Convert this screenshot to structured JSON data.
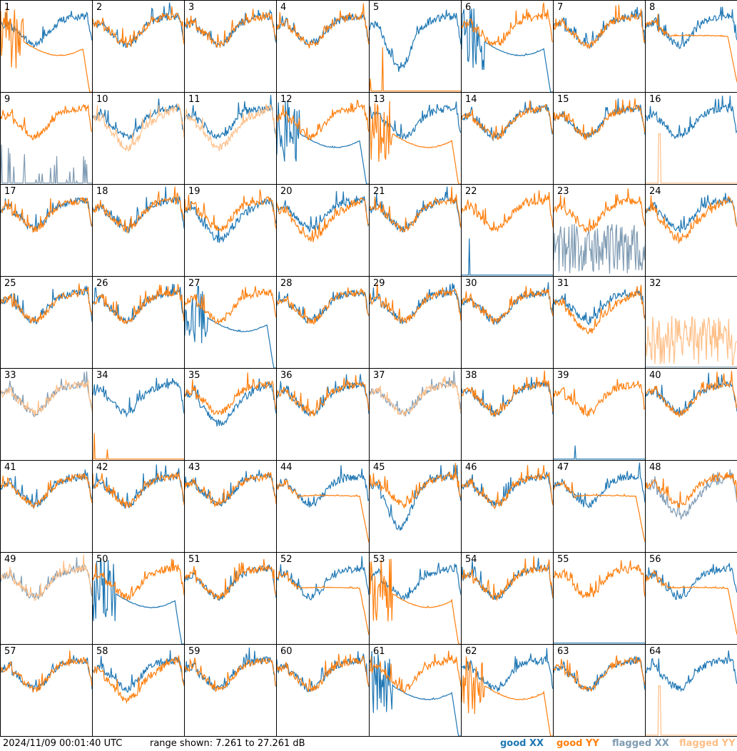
{
  "colors": {
    "good_xx": "#1f77b4",
    "good_yy": "#ff7f0e",
    "flagged_xx": "#7f9bb3",
    "flagged_yy": "#ffbf87"
  },
  "footer": {
    "timestamp": "2024/11/09 00:01:40 UTC",
    "range": "range shown: 7.261 to 27.261 dB"
  },
  "legend": [
    {
      "label": "good XX",
      "color": "#1f77b4"
    },
    {
      "label": "good YY",
      "color": "#ff7f0e"
    },
    {
      "label": "flagged XX",
      "color": "#7f9bb3"
    },
    {
      "label": "flagged YY",
      "color": "#ffbf87"
    }
  ],
  "chart_data": {
    "type": "line",
    "grid": "8x8 small multiples",
    "ylim_db": [
      7.261,
      27.261
    ],
    "y_range_text": "range shown: 7.261 to 27.261 dB",
    "series_names": [
      "good XX",
      "good YY",
      "flagged XX",
      "flagged YY"
    ],
    "panels": [
      {
        "id": "1",
        "xx": "normal",
        "yy": "drop"
      },
      {
        "id": "2",
        "xx": "normal",
        "yy": "normal"
      },
      {
        "id": "3",
        "xx": "normal",
        "yy": "normal"
      },
      {
        "id": "4",
        "xx": "normal",
        "yy": "normal"
      },
      {
        "id": "5",
        "xx": "dip",
        "yy": "flat_spikes"
      },
      {
        "id": "6",
        "xx": "drop",
        "yy": "normal"
      },
      {
        "id": "7",
        "xx": "normal",
        "yy": "normal"
      },
      {
        "id": "8",
        "xx": "normal",
        "yy": "smooth"
      },
      {
        "id": "9",
        "xx": "flagged_spikes",
        "yy": "normal"
      },
      {
        "id": "10",
        "xx": "normal",
        "yy": "flagged_low"
      },
      {
        "id": "11",
        "xx": "normal",
        "yy": "flagged_low"
      },
      {
        "id": "12",
        "xx": "drop",
        "yy": "normal"
      },
      {
        "id": "13",
        "xx": "normal",
        "yy": "drop"
      },
      {
        "id": "14",
        "xx": "normal",
        "yy": "normal"
      },
      {
        "id": "15",
        "xx": "normal",
        "yy": "normal"
      },
      {
        "id": "16",
        "xx": "normal",
        "yy": "flagged_flat_spike"
      },
      {
        "id": "17",
        "xx": "normal",
        "yy": "normal"
      },
      {
        "id": "18",
        "xx": "normal",
        "yy": "normal"
      },
      {
        "id": "19",
        "xx": "low",
        "yy": "normal"
      },
      {
        "id": "20",
        "xx": "normal",
        "yy": "low"
      },
      {
        "id": "21",
        "xx": "normal",
        "yy": "normal"
      },
      {
        "id": "22",
        "xx": "flat_spikes",
        "yy": "normal"
      },
      {
        "id": "23",
        "xx": "flagged_noisy",
        "yy": "normal"
      },
      {
        "id": "24",
        "xx": "normal",
        "yy": "low"
      },
      {
        "id": "25",
        "xx": "normal",
        "yy": "normal"
      },
      {
        "id": "26",
        "xx": "normal",
        "yy": "normal"
      },
      {
        "id": "27",
        "xx": "drop",
        "yy": "normal"
      },
      {
        "id": "28",
        "xx": "normal",
        "yy": "normal"
      },
      {
        "id": "29",
        "xx": "normal",
        "yy": "normal"
      },
      {
        "id": "30",
        "xx": "normal",
        "yy": "normal"
      },
      {
        "id": "31",
        "xx": "normal",
        "yy": "low"
      },
      {
        "id": "32",
        "xx": "flagged_flat",
        "yy": "flagged_noisy"
      },
      {
        "id": "33",
        "xx": "flagged_normal",
        "yy": "flagged_normal"
      },
      {
        "id": "34",
        "xx": "normal",
        "yy": "flat_spikes"
      },
      {
        "id": "35",
        "xx": "low",
        "yy": "normal"
      },
      {
        "id": "36",
        "xx": "normal",
        "yy": "normal"
      },
      {
        "id": "37",
        "xx": "flagged_normal",
        "yy": "flagged_normal"
      },
      {
        "id": "38",
        "xx": "normal",
        "yy": "normal"
      },
      {
        "id": "39",
        "xx": "flat_spikes",
        "yy": "normal"
      },
      {
        "id": "40",
        "xx": "normal",
        "yy": "normal"
      },
      {
        "id": "41",
        "xx": "normal",
        "yy": "normal"
      },
      {
        "id": "42",
        "xx": "normal",
        "yy": "normal"
      },
      {
        "id": "43",
        "xx": "normal",
        "yy": "normal"
      },
      {
        "id": "44",
        "xx": "normal",
        "yy": "smooth"
      },
      {
        "id": "45",
        "xx": "dip",
        "yy": "normal"
      },
      {
        "id": "46",
        "xx": "normal",
        "yy": "normal"
      },
      {
        "id": "47",
        "xx": "normal",
        "yy": "smooth"
      },
      {
        "id": "48",
        "xx": "flagged_low",
        "yy": "normal"
      },
      {
        "id": "49",
        "xx": "flagged_normal",
        "yy": "flagged_normal"
      },
      {
        "id": "50",
        "xx": "drop",
        "yy": "normal"
      },
      {
        "id": "51",
        "xx": "normal",
        "yy": "normal"
      },
      {
        "id": "52",
        "xx": "normal",
        "yy": "smooth"
      },
      {
        "id": "53",
        "xx": "normal",
        "yy": "drop"
      },
      {
        "id": "54",
        "xx": "normal",
        "yy": "normal"
      },
      {
        "id": "55",
        "xx": "flat_spikes",
        "yy": "normal"
      },
      {
        "id": "56",
        "xx": "normal",
        "yy": "smooth"
      },
      {
        "id": "57",
        "xx": "normal",
        "yy": "normal"
      },
      {
        "id": "58",
        "xx": "normal",
        "yy": "low"
      },
      {
        "id": "59",
        "xx": "normal",
        "yy": "normal"
      },
      {
        "id": "60",
        "xx": "normal",
        "yy": "normal"
      },
      {
        "id": "61",
        "xx": "drop",
        "yy": "normal"
      },
      {
        "id": "62",
        "xx": "normal",
        "yy": "drop"
      },
      {
        "id": "63",
        "xx": "normal",
        "yy": "normal"
      },
      {
        "id": "64",
        "xx": "normal",
        "yy": "flagged_flat_spike"
      }
    ]
  }
}
